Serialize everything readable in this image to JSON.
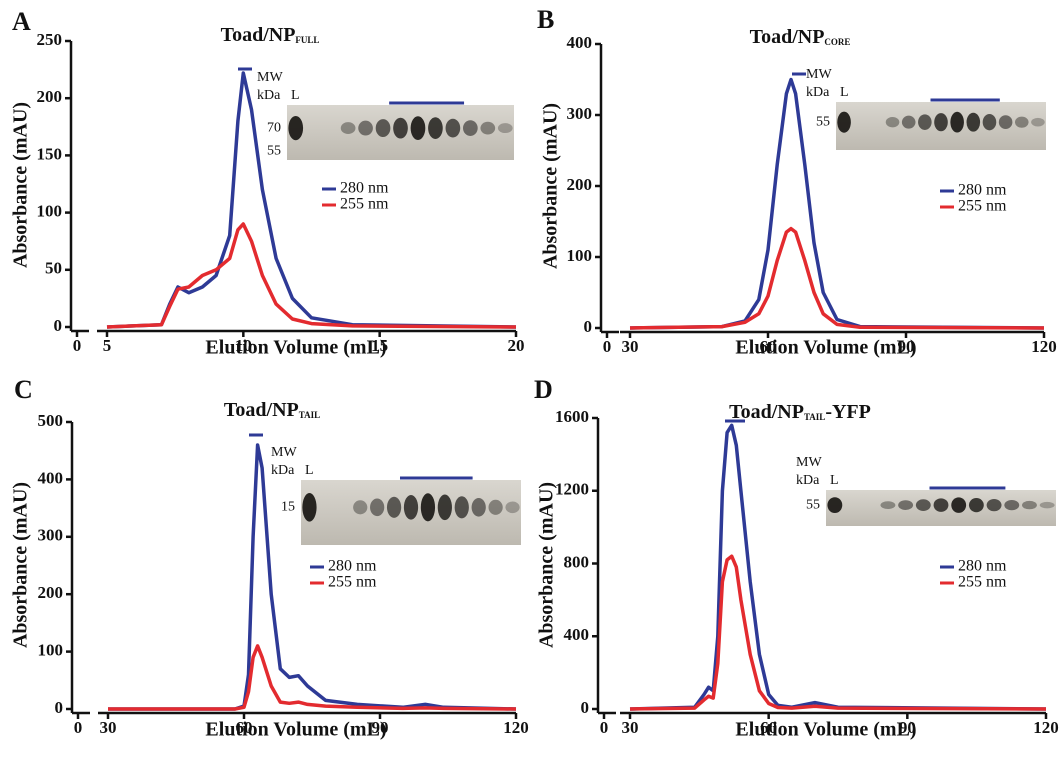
{
  "chart_data": [
    {
      "type": "line",
      "panel_label": "A",
      "title": "Toad/NP",
      "title_subscript": "FULL",
      "xlabel": "Elution Volume (mL)",
      "ylabel": "Absorbance (mAU)",
      "xlim": [
        0,
        20
      ],
      "x_break": [
        0,
        5
      ],
      "xticks": [
        0,
        5,
        10,
        15,
        20
      ],
      "ylim": [
        0,
        250
      ],
      "yticks": [
        0,
        50,
        100,
        150,
        200,
        250
      ],
      "x": [
        5,
        7,
        7.3,
        7.6,
        8,
        8.5,
        9,
        9.5,
        9.8,
        10,
        10.3,
        10.7,
        11.2,
        11.8,
        12.5,
        14,
        20
      ],
      "series": [
        {
          "name": "280 nm",
          "color": "#2e3a96",
          "values": [
            0,
            2,
            20,
            35,
            30,
            35,
            45,
            80,
            180,
            222,
            190,
            120,
            60,
            25,
            8,
            2,
            0
          ]
        },
        {
          "name": "255 nm",
          "color": "#e32b2f",
          "values": [
            0,
            2,
            18,
            33,
            35,
            45,
            50,
            60,
            85,
            90,
            75,
            45,
            20,
            7,
            3,
            1,
            0
          ]
        }
      ],
      "gel": {
        "mw": "MW",
        "unit": "kDa",
        "lane": "L",
        "markers": [
          70,
          55
        ]
      }
    },
    {
      "type": "line",
      "panel_label": "B",
      "title": "Toad/NP",
      "title_subscript": "CORE",
      "xlabel": "Elution Volume (mL)",
      "ylabel": "Absorbance (mAU)",
      "xlim": [
        0,
        120
      ],
      "x_break": [
        0,
        30
      ],
      "xticks": [
        0,
        30,
        60,
        90,
        120
      ],
      "ylim": [
        0,
        400
      ],
      "yticks": [
        0,
        100,
        200,
        300,
        400
      ],
      "x": [
        30,
        50,
        55,
        58,
        60,
        62,
        64,
        65,
        66,
        68,
        70,
        72,
        75,
        80,
        120
      ],
      "series": [
        {
          "name": "280 nm",
          "color": "#2e3a96",
          "values": [
            0,
            2,
            10,
            40,
            110,
            230,
            330,
            350,
            330,
            230,
            120,
            50,
            12,
            2,
            0
          ]
        },
        {
          "name": "255 nm",
          "color": "#e32b2f",
          "values": [
            0,
            2,
            8,
            20,
            45,
            95,
            135,
            140,
            135,
            95,
            50,
            20,
            5,
            1,
            0
          ]
        }
      ],
      "gel": {
        "mw": "MW",
        "unit": "kDa",
        "lane": "L",
        "markers": [
          55
        ]
      }
    },
    {
      "type": "line",
      "panel_label": "C",
      "title": "Toad/NP",
      "title_subscript": "TAIL",
      "xlabel": "Elution Volume (mL)",
      "ylabel": "Absorbance (mAU)",
      "xlim": [
        0,
        120
      ],
      "x_break": [
        0,
        30
      ],
      "xticks": [
        0,
        30,
        60,
        90,
        120
      ],
      "ylim": [
        0,
        500
      ],
      "yticks": [
        0,
        100,
        200,
        300,
        400,
        500
      ],
      "x": [
        30,
        58,
        60,
        61,
        62,
        63,
        64,
        66,
        68,
        70,
        72,
        74,
        78,
        85,
        95,
        100,
        104,
        120
      ],
      "series": [
        {
          "name": "280 nm",
          "color": "#2e3a96",
          "values": [
            0,
            0,
            5,
            60,
            300,
            460,
            420,
            200,
            70,
            55,
            58,
            40,
            15,
            8,
            3,
            8,
            3,
            0
          ]
        },
        {
          "name": "255 nm",
          "color": "#e32b2f",
          "values": [
            0,
            0,
            3,
            30,
            90,
            110,
            90,
            40,
            12,
            10,
            12,
            8,
            5,
            3,
            1,
            2,
            1,
            0
          ]
        }
      ],
      "gel": {
        "mw": "MW",
        "unit": "kDa",
        "lane": "L",
        "markers": [
          15
        ]
      }
    },
    {
      "type": "line",
      "panel_label": "D",
      "title": "Toad/NP",
      "title_subscript": "TAIL",
      "title_suffix": "-YFP",
      "xlabel": "Elution Volume (mL)",
      "ylabel": "Absorbance (mAU)",
      "xlim": [
        0,
        120
      ],
      "x_break": [
        0,
        30
      ],
      "xticks": [
        0,
        30,
        60,
        90,
        120
      ],
      "ylim": [
        0,
        1600
      ],
      "yticks": [
        0,
        400,
        800,
        1200,
        1600
      ],
      "x": [
        30,
        44,
        46,
        47,
        48,
        49,
        50,
        51,
        52,
        53,
        54,
        56,
        58,
        60,
        62,
        65,
        70,
        75,
        120
      ],
      "series": [
        {
          "name": "280 nm",
          "color": "#2e3a96",
          "values": [
            0,
            10,
            80,
            120,
            100,
            400,
            1200,
            1520,
            1560,
            1450,
            1200,
            700,
            300,
            80,
            20,
            10,
            35,
            10,
            0
          ]
        },
        {
          "name": "255 nm",
          "color": "#e32b2f",
          "values": [
            0,
            5,
            50,
            70,
            60,
            250,
            700,
            820,
            840,
            780,
            600,
            300,
            100,
            30,
            8,
            5,
            15,
            5,
            0
          ]
        }
      ],
      "gel": {
        "mw": "MW",
        "unit": "kDa",
        "lane": "L",
        "markers": [
          55
        ]
      }
    }
  ]
}
